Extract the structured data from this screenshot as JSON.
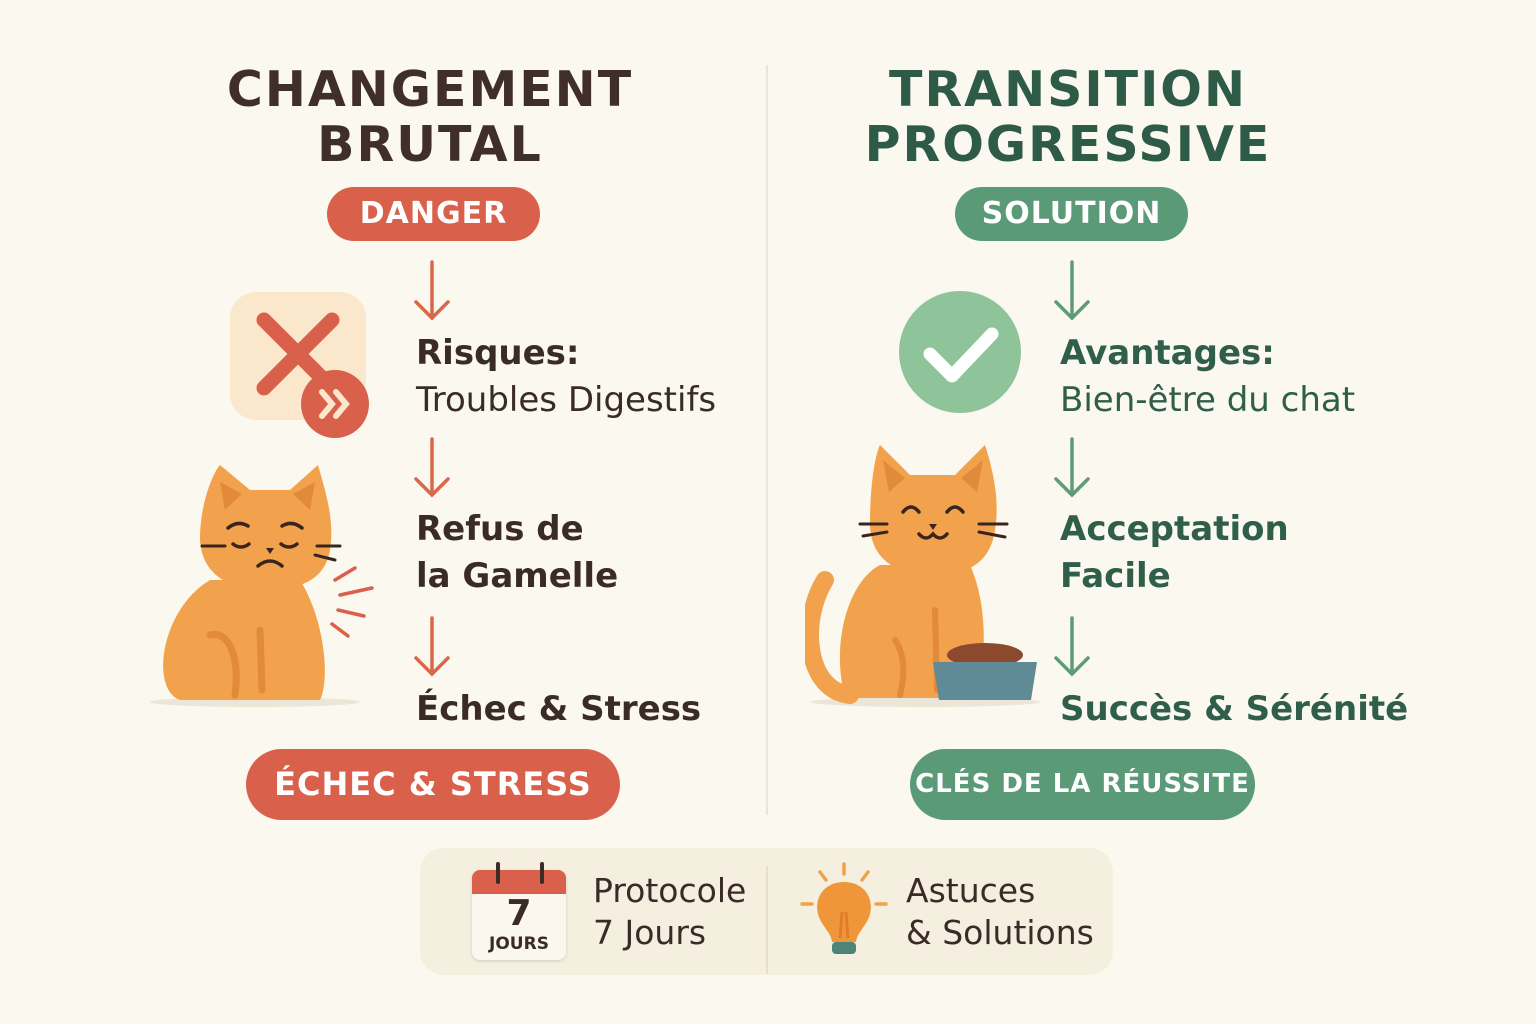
{
  "left": {
    "title_line1": "CHANGEMENT",
    "title_line2": "BRUTAL",
    "badge": "DANGER",
    "steps": [
      {
        "heading": "Risques:",
        "detail": "Troubles Digestifs"
      },
      {
        "heading": "Refus de",
        "detail": "la Gamelle"
      },
      {
        "heading": "Échec & Stress"
      }
    ],
    "footer_button": "ÉCHEC & STRESS",
    "icon": "x-mark-fast-forward-icon"
  },
  "right": {
    "title_line1": "TRANSITION",
    "title_line2": "PROGRESSIVE",
    "badge": "SOLUTION",
    "steps": [
      {
        "heading": "Avantages:",
        "detail": "Bien-être du chat"
      },
      {
        "heading": "Acceptation",
        "detail": "Facile"
      },
      {
        "heading": "Succès & Sérénité"
      }
    ],
    "footer_button": "CLÉS DE LA RÉUSSITE",
    "icon": "check-circle-icon"
  },
  "bottom": {
    "calendar_number": "7",
    "calendar_label": "JOURS",
    "protocol_line1": "Protocole",
    "protocol_line2": "7 Jours",
    "tips_line1": "Astuces",
    "tips_line2": "& Solutions"
  },
  "colors": {
    "background": "#fbf8ef",
    "danger": "#d9604a",
    "solution": "#5a9a76",
    "left_title": "#3f2e2a",
    "right_title": "#2e5a48",
    "cat": "#f2a24c"
  }
}
